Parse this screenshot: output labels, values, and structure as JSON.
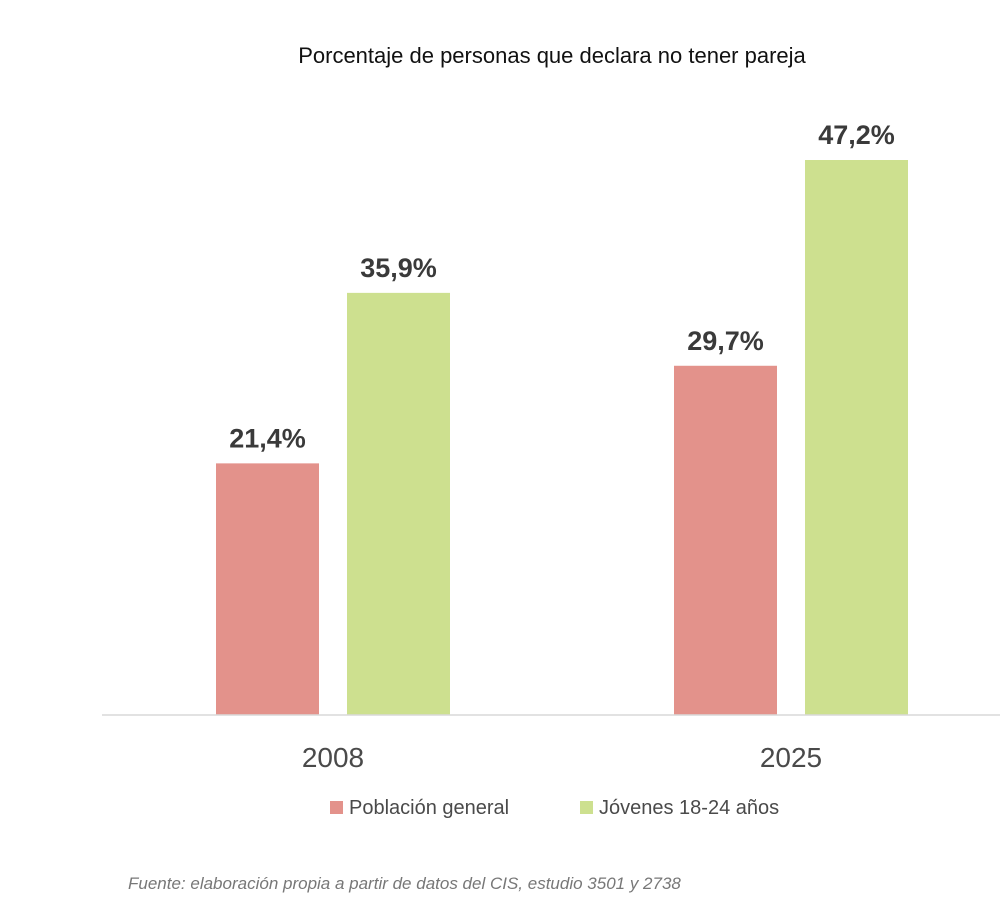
{
  "chart_data": {
    "type": "bar",
    "title": "Porcentaje de personas que declara no tener pareja",
    "categories": [
      "2008",
      "2025"
    ],
    "series": [
      {
        "name": "Población general",
        "color": "#e3928b",
        "values": [
          21.4,
          29.7
        ],
        "labels": [
          "21,4%",
          "29,7%"
        ]
      },
      {
        "name": "Jóvenes 18-24 años",
        "color": "#cde08f",
        "values": [
          35.9,
          47.2
        ],
        "labels": [
          "35,9%",
          "47,2%"
        ]
      }
    ],
    "ylim": [
      0,
      47.2
    ],
    "grid": false,
    "legend_position": "bottom",
    "source": "Fuente: elaboración propia a partir de datos del CIS, estudio 3501 y 2738"
  }
}
